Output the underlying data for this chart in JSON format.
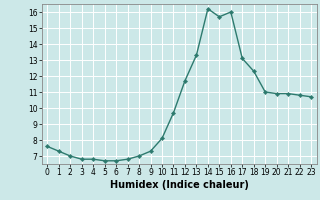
{
  "x": [
    0,
    1,
    2,
    3,
    4,
    5,
    6,
    7,
    8,
    9,
    10,
    11,
    12,
    13,
    14,
    15,
    16,
    17,
    18,
    19,
    20,
    21,
    22,
    23
  ],
  "y": [
    7.6,
    7.3,
    7.0,
    6.8,
    6.8,
    6.7,
    6.7,
    6.8,
    7.0,
    7.3,
    8.1,
    9.7,
    11.7,
    13.3,
    16.2,
    15.7,
    16.0,
    13.1,
    12.3,
    11.0,
    10.9,
    10.9,
    10.8,
    10.7
  ],
  "line_color": "#2d7a6e",
  "marker": "D",
  "marker_size": 2.2,
  "bg_color": "#cce8e8",
  "grid_color": "#ffffff",
  "xlabel": "Humidex (Indice chaleur)",
  "xlim": [
    -0.5,
    23.5
  ],
  "ylim": [
    6.5,
    16.5
  ],
  "yticks": [
    7,
    8,
    9,
    10,
    11,
    12,
    13,
    14,
    15,
    16
  ],
  "xticks": [
    0,
    1,
    2,
    3,
    4,
    5,
    6,
    7,
    8,
    9,
    10,
    11,
    12,
    13,
    14,
    15,
    16,
    17,
    18,
    19,
    20,
    21,
    22,
    23
  ],
  "tick_fontsize": 5.5,
  "label_fontsize": 7.0,
  "line_width": 1.0
}
